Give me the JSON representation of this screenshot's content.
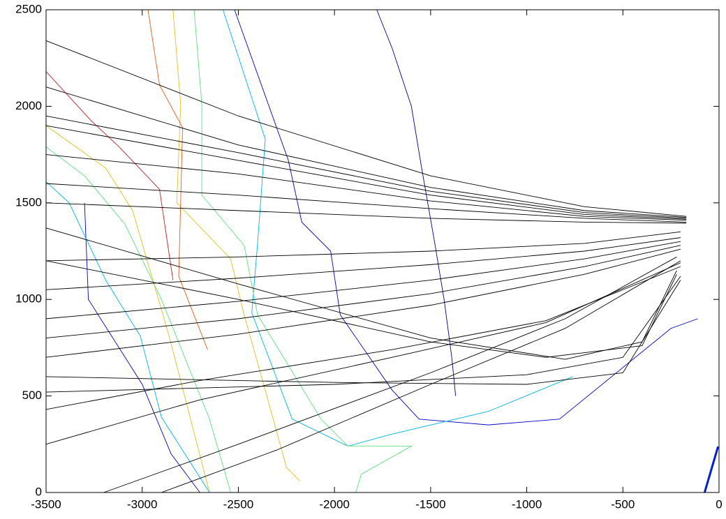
{
  "chart_data": {
    "type": "line",
    "xlim": [
      -3500,
      0
    ],
    "ylim": [
      0,
      2500
    ],
    "xticks": [
      -3500,
      -3000,
      -2500,
      -2000,
      -1500,
      -1000,
      -500,
      0
    ],
    "yticks": [
      0,
      500,
      1000,
      1500,
      2000,
      2500
    ],
    "series": [
      {
        "color": "#00008f",
        "x": [
          -1780,
          -1700,
          -1600,
          -1550,
          -1480,
          -1430,
          -1390,
          -1370
        ],
        "values": [
          2500,
          2300,
          2000,
          1700,
          1300,
          1000,
          700,
          500
        ]
      },
      {
        "color": "#0000c8",
        "x": [
          -2520,
          -2240,
          -2170,
          -2020,
          -1970,
          -1700,
          -1560,
          -1200,
          -830,
          -250,
          -110
        ],
        "values": [
          2500,
          1720,
          1400,
          1250,
          920,
          530,
          380,
          350,
          380,
          850,
          900
        ]
      },
      {
        "color": "#0000c8",
        "x": [
          -3300,
          -3280,
          -3000,
          -2850,
          -2700
        ],
        "values": [
          1500,
          1000,
          560,
          200,
          0
        ]
      },
      {
        "color": "#00b4e6",
        "x": [
          -2580,
          -2360,
          -2400,
          -2430,
          -2220,
          -1930,
          -1710,
          -1200,
          -760
        ],
        "values": [
          2500,
          1830,
          1290,
          930,
          380,
          240,
          300,
          420,
          600
        ]
      },
      {
        "color": "#00b4e6",
        "x": [
          -3500,
          -3380,
          -3190,
          -3010,
          -2900,
          -2650
        ],
        "values": [
          1610,
          1500,
          1100,
          810,
          390,
          0
        ]
      },
      {
        "color": "#60e080",
        "x": [
          -2730,
          -2690,
          -2690,
          -2470,
          -2400,
          -2070,
          -1930,
          -1600,
          -1860,
          -1890
        ],
        "values": [
          2500,
          2010,
          1540,
          1280,
          920,
          380,
          240,
          240,
          95,
          0
        ]
      },
      {
        "color": "#60e080",
        "x": [
          -3500,
          -3300,
          -3090,
          -2900,
          -2650,
          -2540
        ],
        "values": [
          1790,
          1640,
          1390,
          1000,
          380,
          0
        ]
      },
      {
        "color": "#e0c020",
        "x": [
          -2840,
          -2800,
          -2820,
          -2540,
          -2470,
          -2360,
          -2250,
          -2180
        ],
        "values": [
          2500,
          2010,
          1500,
          1210,
          920,
          530,
          130,
          60
        ]
      },
      {
        "color": "#e0c020",
        "x": [
          -3500,
          -3190,
          -3050,
          -2860,
          -2650
        ],
        "values": [
          1900,
          1680,
          1460,
          810,
          0
        ]
      },
      {
        "color": "#e06020",
        "x": [
          -2970,
          -2910,
          -2790,
          -2810,
          -2660
        ],
        "values": [
          2500,
          2110,
          1890,
          1120,
          740
        ]
      },
      {
        "color": "#c02020",
        "x": [
          -3500,
          -3270,
          -3120,
          -2910,
          -2840
        ],
        "values": [
          2180,
          1930,
          1790,
          1570,
          1100
        ]
      },
      {
        "color": "#0020d0",
        "linewidth": 3,
        "x": [
          -75,
          -5
        ],
        "values": [
          0,
          238
        ]
      },
      {
        "color": "#000000",
        "x": [
          -3500,
          -2500,
          -1500,
          -700,
          -170
        ],
        "values": [
          2340,
          1950,
          1640,
          1480,
          1430
        ]
      },
      {
        "color": "#000000",
        "x": [
          -3500,
          -2500,
          -1500,
          -700,
          -170
        ],
        "values": [
          2100,
          1800,
          1580,
          1460,
          1425
        ]
      },
      {
        "color": "#000000",
        "x": [
          -3500,
          -2500,
          -1500,
          -700,
          -170
        ],
        "values": [
          1950,
          1760,
          1560,
          1450,
          1420
        ]
      },
      {
        "color": "#000000",
        "x": [
          -3500,
          -2500,
          -1500,
          -700,
          -170
        ],
        "values": [
          1900,
          1720,
          1540,
          1440,
          1415
        ]
      },
      {
        "color": "#000000",
        "x": [
          -3500,
          -2500,
          -1500,
          -700,
          -170
        ],
        "values": [
          1750,
          1650,
          1510,
          1430,
          1410
        ]
      },
      {
        "color": "#000000",
        "x": [
          -3500,
          -2500,
          -1500,
          -700,
          -170
        ],
        "values": [
          1600,
          1540,
          1470,
          1420,
          1400
        ]
      },
      {
        "color": "#000000",
        "x": [
          -3500,
          -2500,
          -1500,
          -700,
          -170
        ],
        "values": [
          1500,
          1460,
          1420,
          1400,
          1395
        ]
      },
      {
        "color": "#000000",
        "x": [
          -3500,
          -2500,
          -1500,
          -700,
          -200
        ],
        "values": [
          1200,
          1220,
          1250,
          1290,
          1350
        ]
      },
      {
        "color": "#000000",
        "x": [
          -3500,
          -2500,
          -1500,
          -700,
          -200
        ],
        "values": [
          1050,
          1110,
          1180,
          1250,
          1320
        ]
      },
      {
        "color": "#000000",
        "x": [
          -3500,
          -2500,
          -1500,
          -700,
          -200
        ],
        "values": [
          900,
          990,
          1100,
          1210,
          1300
        ]
      },
      {
        "color": "#000000",
        "x": [
          -3500,
          -2500,
          -1500,
          -700,
          -200
        ],
        "values": [
          800,
          900,
          1030,
          1170,
          1280
        ]
      },
      {
        "color": "#000000",
        "x": [
          -3500,
          -2500,
          -1500,
          -700,
          -200
        ],
        "values": [
          700,
          820,
          970,
          1130,
          1260
        ]
      },
      {
        "color": "#000000",
        "x": [
          -3200,
          -2500,
          -1500,
          -800,
          -220
        ],
        "values": [
          0,
          250,
          620,
          900,
          1220
        ]
      },
      {
        "color": "#000000",
        "x": [
          -2900,
          -2300,
          -1500,
          -800,
          -200
        ],
        "values": [
          0,
          220,
          560,
          850,
          1200
        ]
      },
      {
        "color": "#000000",
        "x": [
          -3500,
          -2700,
          -1700,
          -900,
          -200
        ],
        "values": [
          250,
          480,
          700,
          880,
          1190
        ]
      },
      {
        "color": "#000000",
        "x": [
          -3500,
          -2700,
          -1700,
          -900,
          -200
        ],
        "values": [
          430,
          580,
          740,
          890,
          1170
        ]
      },
      {
        "color": "#000000",
        "x": [
          -3500,
          -2500,
          -1500,
          -800,
          -400,
          -220
        ],
        "values": [
          1370,
          1080,
          800,
          690,
          780,
          1150
        ]
      },
      {
        "color": "#000000",
        "x": [
          -3500,
          -2500,
          -1500,
          -900,
          -400,
          -220
        ],
        "values": [
          1200,
          1000,
          780,
          700,
          760,
          1130
        ]
      },
      {
        "color": "#000000",
        "x": [
          -3500,
          -2000,
          -1000,
          -500,
          -200
        ],
        "values": [
          600,
          570,
          560,
          620,
          1100
        ]
      },
      {
        "color": "#000000",
        "x": [
          -3500,
          -2000,
          -1000,
          -500,
          -200
        ],
        "values": [
          520,
          560,
          610,
          700,
          1120
        ]
      }
    ]
  }
}
